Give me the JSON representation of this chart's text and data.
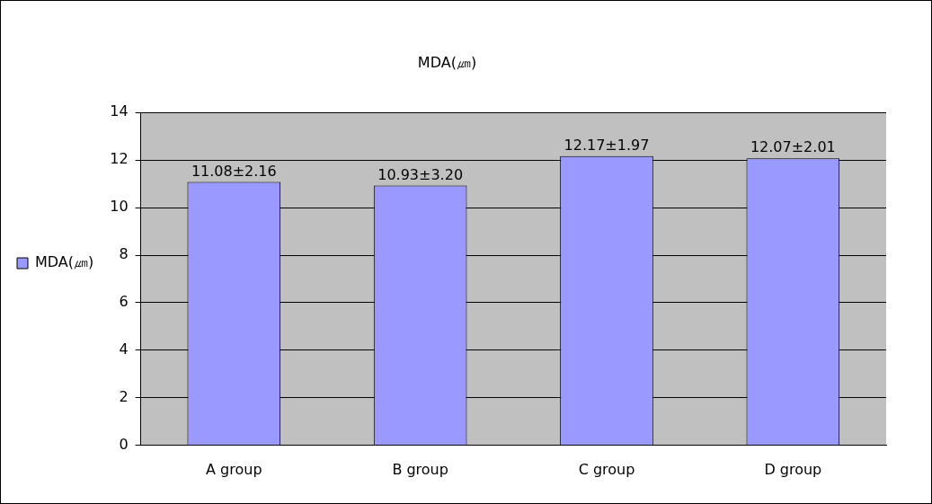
{
  "chart_data": {
    "type": "bar",
    "title": "MDA(㎛)",
    "categories": [
      "A group",
      "B group",
      "C group",
      "D group"
    ],
    "series": [
      {
        "name": "MDA(㎛)",
        "color": "#9999ff",
        "values": [
          11.08,
          10.93,
          12.17,
          12.07
        ],
        "value_labels": [
          "11.08±2.16",
          "10.93±3.20",
          "12.17±1.97",
          "12.07±2.01"
        ]
      }
    ],
    "ylim": [
      0,
      14
    ],
    "yticks": [
      0,
      2,
      4,
      6,
      8,
      10,
      12,
      14
    ],
    "grid": "y",
    "legend": "left"
  }
}
